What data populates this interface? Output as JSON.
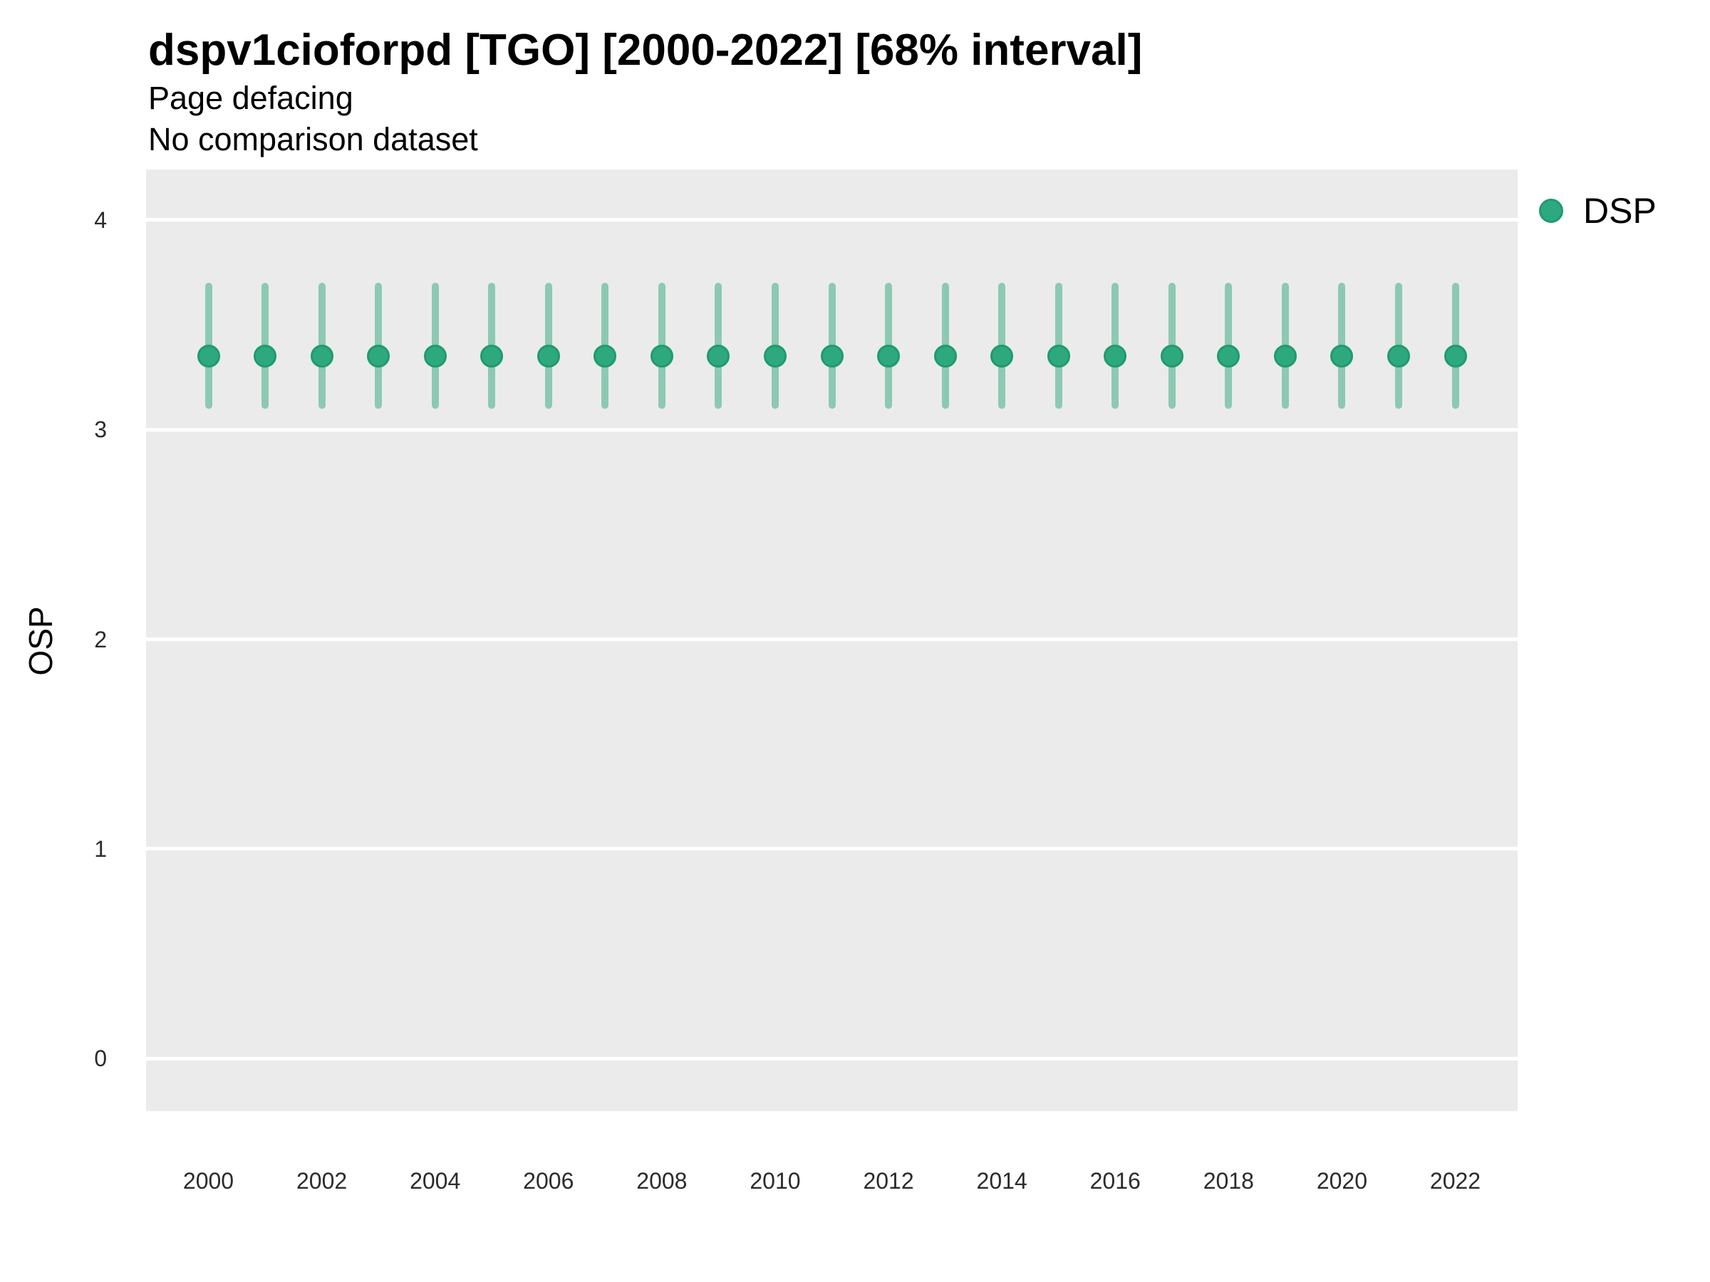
{
  "header": {
    "title": "dspv1cioforpd [TGO] [2000-2022] [68% interval]",
    "subtitle": "Page defacing",
    "note": "No comparison dataset"
  },
  "chart_data": {
    "type": "scatter",
    "title": "dspv1cioforpd [TGO] [2000-2022] [68% interval]",
    "subtitle": "Page defacing",
    "note": "No comparison dataset",
    "interval": "68% interval",
    "xlabel": "",
    "ylabel": "OSP",
    "x": [
      2000,
      2001,
      2002,
      2003,
      2004,
      2005,
      2006,
      2007,
      2008,
      2009,
      2010,
      2011,
      2012,
      2013,
      2014,
      2015,
      2016,
      2017,
      2018,
      2019,
      2020,
      2021,
      2022
    ],
    "series": [
      {
        "name": "DSP",
        "color": "#2EA87E",
        "stroke_color": "#1F9B6C",
        "interval_color": "rgba(46, 168, 124, 0.5)",
        "values": [
          3.35,
          3.35,
          3.35,
          3.35,
          3.35,
          3.35,
          3.35,
          3.35,
          3.35,
          3.35,
          3.35,
          3.35,
          3.35,
          3.35,
          3.35,
          3.35,
          3.35,
          3.35,
          3.35,
          3.35,
          3.35,
          3.35,
          3.35
        ],
        "lower": [
          3.1,
          3.1,
          3.1,
          3.1,
          3.1,
          3.1,
          3.1,
          3.1,
          3.1,
          3.1,
          3.1,
          3.1,
          3.1,
          3.1,
          3.1,
          3.1,
          3.1,
          3.1,
          3.1,
          3.1,
          3.1,
          3.1,
          3.1
        ],
        "upper": [
          3.7,
          3.7,
          3.7,
          3.7,
          3.7,
          3.7,
          3.7,
          3.7,
          3.7,
          3.7,
          3.7,
          3.7,
          3.7,
          3.7,
          3.7,
          3.7,
          3.7,
          3.7,
          3.7,
          3.7,
          3.7,
          3.7,
          3.7
        ]
      }
    ],
    "xticks": [
      2000,
      2002,
      2004,
      2006,
      2008,
      2010,
      2012,
      2014,
      2016,
      2018,
      2020,
      2022
    ],
    "yticks": [
      0,
      1,
      2,
      3,
      4
    ],
    "xlim": [
      1998.9,
      2023.1
    ],
    "ylim": [
      -0.25,
      4.24
    ],
    "grid": true,
    "panel_bg": "#EBEBEB",
    "grid_color": "#FFFFFF",
    "legend_position": "right",
    "legend_entries": [
      {
        "label": "DSP",
        "color": "#2EA87E",
        "stroke_color": "#1F9B6C"
      }
    ]
  }
}
